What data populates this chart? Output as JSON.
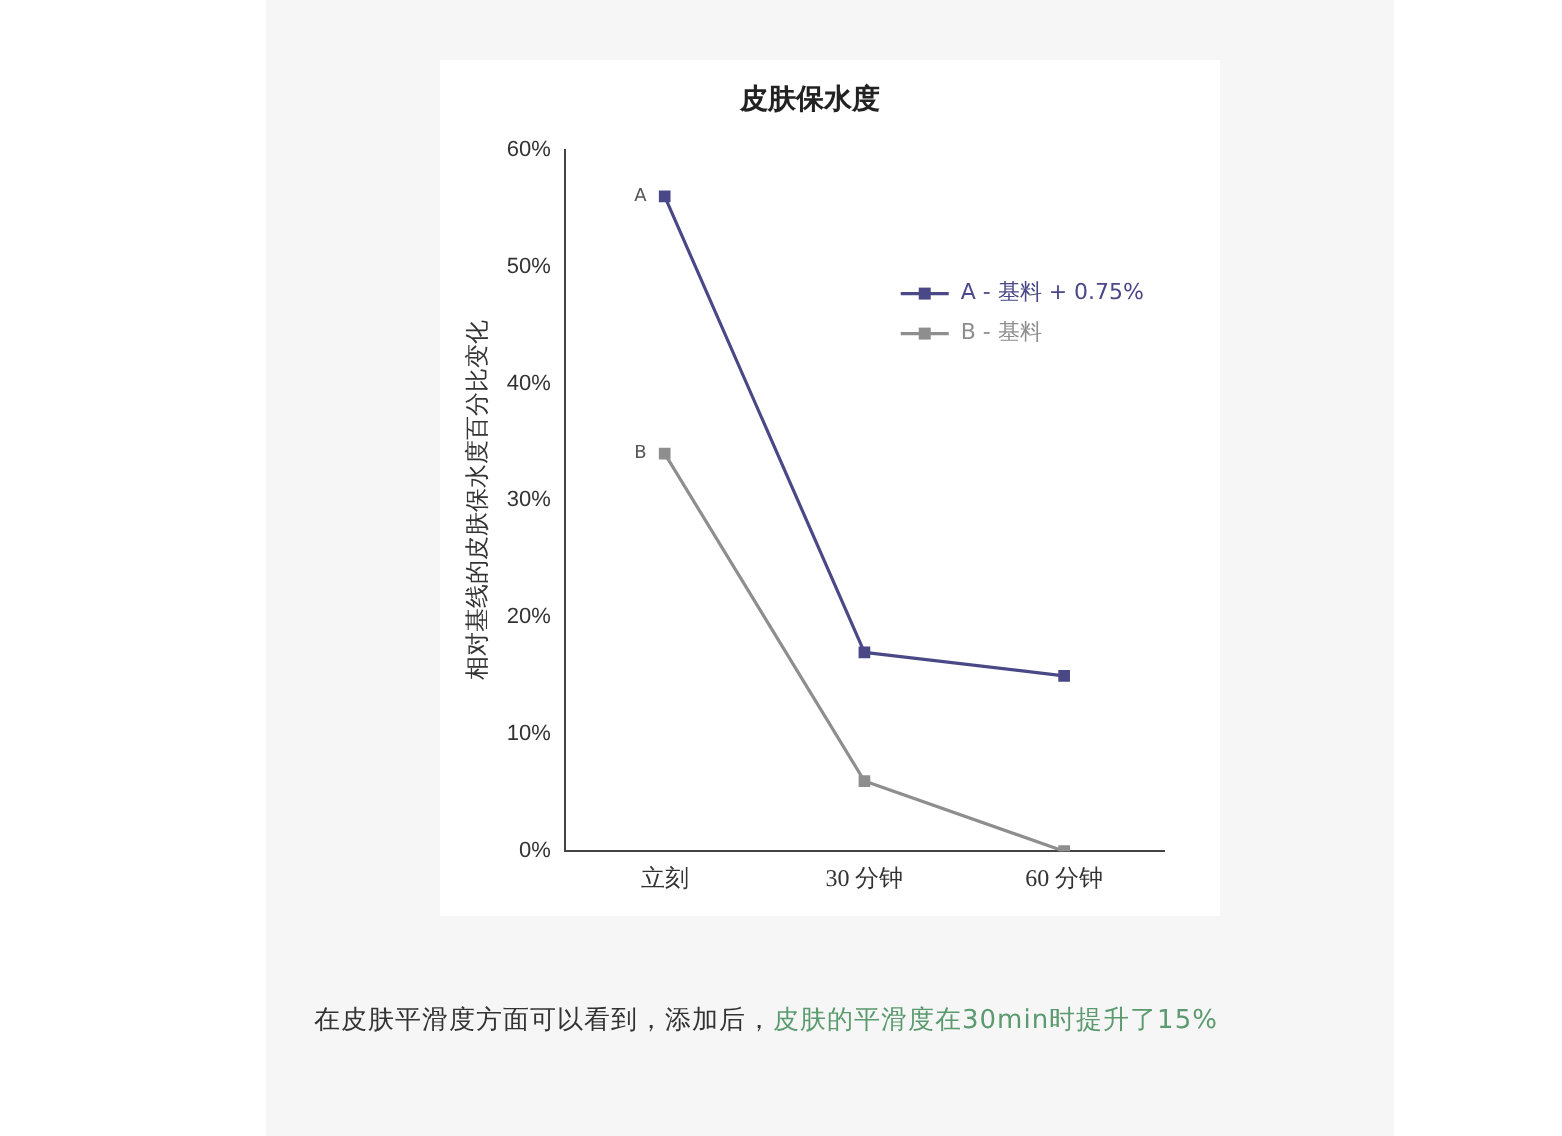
{
  "chart_data": {
    "type": "line",
    "title": "皮肤保水度",
    "ylabel": "相对基线的皮肤保水度百分比变化",
    "categories": [
      "立刻",
      "30 分钟",
      "60 分钟"
    ],
    "series": [
      {
        "name": "A - 基料 + 0.75%",
        "color": "#4a4887",
        "values": [
          56,
          17,
          15
        ]
      },
      {
        "name": "B - 基料",
        "color": "#8e8e8e",
        "values": [
          34,
          6,
          0
        ]
      }
    ],
    "ylim": [
      0,
      60
    ],
    "yticks": [
      {
        "value": 0,
        "label": "0%"
      },
      {
        "value": 10,
        "label": "10%"
      },
      {
        "value": 20,
        "label": "20%"
      },
      {
        "value": 30,
        "label": "30%"
      },
      {
        "value": 40,
        "label": "40%"
      },
      {
        "value": 50,
        "label": "50%"
      },
      {
        "value": 60,
        "label": "60%"
      }
    ],
    "grid": false,
    "legend": "top right",
    "marker": "square",
    "line_style": "solid",
    "annotations": [
      {
        "text": "A",
        "x": "立刻",
        "y": 56
      },
      {
        "text": "B",
        "x": "立刻",
        "y": 34
      },
      "在皮肤平滑度方面可以看到，添加后，",
      "皮肤的平滑度在30min时提升了15%"
    ]
  }
}
